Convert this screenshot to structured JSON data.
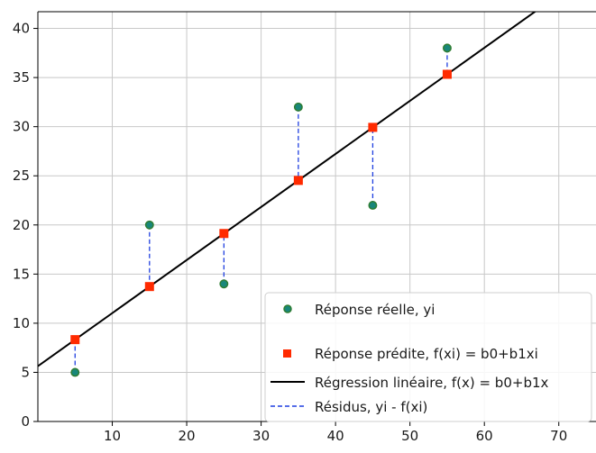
{
  "colors": {
    "observed_fill": "#18877a",
    "observed_edge": "#2e7d32",
    "predicted": "#ff2a00",
    "regression": "#000000",
    "residual": "#1f3fe0",
    "grid": "#c8c8c8"
  },
  "chart_data": {
    "type": "scatter",
    "title": "",
    "xlabel": "",
    "ylabel": "",
    "xlim": [
      0,
      75
    ],
    "ylim": [
      0,
      41.7
    ],
    "x_ticks": [
      10,
      20,
      30,
      40,
      50,
      60,
      70
    ],
    "y_ticks": [
      0,
      5,
      10,
      15,
      20,
      25,
      30,
      35,
      40
    ],
    "grid": true,
    "legend_position": "bottom-right",
    "intercept": 5.63,
    "slope": 0.54,
    "series": [
      {
        "name": "Réponse réelle, yi",
        "kind": "scatter-circle",
        "x": [
          5,
          15,
          25,
          35,
          45,
          55
        ],
        "y": [
          5,
          20,
          14,
          32,
          22,
          38
        ]
      },
      {
        "name": "Réponse prédite, f(xi) = b0+b1xi",
        "kind": "scatter-square",
        "x": [
          5,
          15,
          25,
          35,
          45,
          55
        ],
        "y": [
          8.33,
          13.73,
          19.13,
          24.53,
          29.93,
          35.33
        ]
      },
      {
        "name": "Régression linéaire, f(x) = b0+b1x",
        "kind": "line",
        "x": [
          0,
          75
        ],
        "y": [
          5.63,
          46.13
        ]
      },
      {
        "name": "Résidus, yi - f(xi)",
        "kind": "dashed-segments"
      }
    ]
  }
}
